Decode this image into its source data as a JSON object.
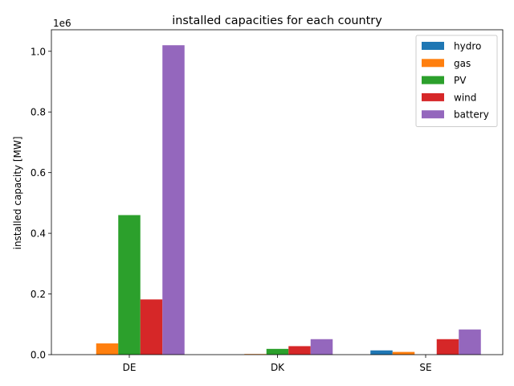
{
  "chart_data": {
    "type": "bar",
    "title": "installed capacities for each country",
    "xlabel": "",
    "ylabel": "installed capacity [MW]",
    "y_offset_label": "1e6",
    "categories": [
      "DE",
      "DK",
      "SE"
    ],
    "series": [
      {
        "name": "hydro",
        "color": "#1f77b4",
        "values": [
          0,
          0,
          14000
        ]
      },
      {
        "name": "gas",
        "color": "#ff7f0e",
        "values": [
          37000,
          2000,
          9000
        ]
      },
      {
        "name": "PV",
        "color": "#2ca02c",
        "values": [
          460000,
          19000,
          0
        ]
      },
      {
        "name": "wind",
        "color": "#d62728",
        "values": [
          182000,
          28000,
          51000
        ]
      },
      {
        "name": "battery",
        "color": "#9467bd",
        "values": [
          1020000,
          51000,
          83000
        ]
      }
    ],
    "ylim": [
      0,
      1071000
    ],
    "yticks": [
      0,
      200000,
      400000,
      600000,
      800000,
      1000000
    ],
    "ytick_labels": [
      "0.0",
      "0.2",
      "0.4",
      "0.6",
      "0.8",
      "1.0"
    ],
    "grid": false,
    "legend_position": "top-right"
  }
}
